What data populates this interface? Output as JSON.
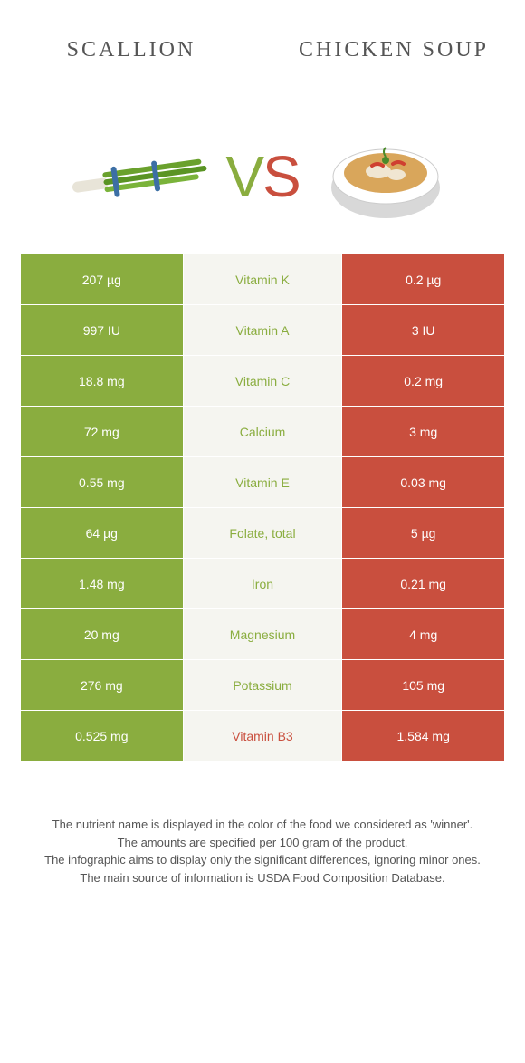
{
  "header": {
    "left_title": "Scallion",
    "right_title": "Chicken soup"
  },
  "vs": {
    "v": "V",
    "s": "S"
  },
  "colors": {
    "left": "#8aad3f",
    "right": "#c94f3e",
    "cell_bg": "#f5f5f0",
    "page_bg": "#ffffff"
  },
  "rows": [
    {
      "left": "207 µg",
      "nutrient": "Vitamin K",
      "right": "0.2 µg",
      "winner": "left"
    },
    {
      "left": "997 IU",
      "nutrient": "Vitamin A",
      "right": "3 IU",
      "winner": "left"
    },
    {
      "left": "18.8 mg",
      "nutrient": "Vitamin C",
      "right": "0.2 mg",
      "winner": "left"
    },
    {
      "left": "72 mg",
      "nutrient": "Calcium",
      "right": "3 mg",
      "winner": "left"
    },
    {
      "left": "0.55 mg",
      "nutrient": "Vitamin E",
      "right": "0.03 mg",
      "winner": "left"
    },
    {
      "left": "64 µg",
      "nutrient": "Folate, total",
      "right": "5 µg",
      "winner": "left"
    },
    {
      "left": "1.48 mg",
      "nutrient": "Iron",
      "right": "0.21 mg",
      "winner": "left"
    },
    {
      "left": "20 mg",
      "nutrient": "Magnesium",
      "right": "4 mg",
      "winner": "left"
    },
    {
      "left": "276 mg",
      "nutrient": "Potassium",
      "right": "105 mg",
      "winner": "left"
    },
    {
      "left": "0.525 mg",
      "nutrient": "Vitamin B3",
      "right": "1.584 mg",
      "winner": "right"
    }
  ],
  "footnotes": [
    "The nutrient name is displayed in the color of the food we considered as 'winner'.",
    "The amounts are specified per 100 gram of the product.",
    "The infographic aims to display only the significant differences, ignoring minor ones.",
    "The main source of information is USDA Food Composition Database."
  ]
}
